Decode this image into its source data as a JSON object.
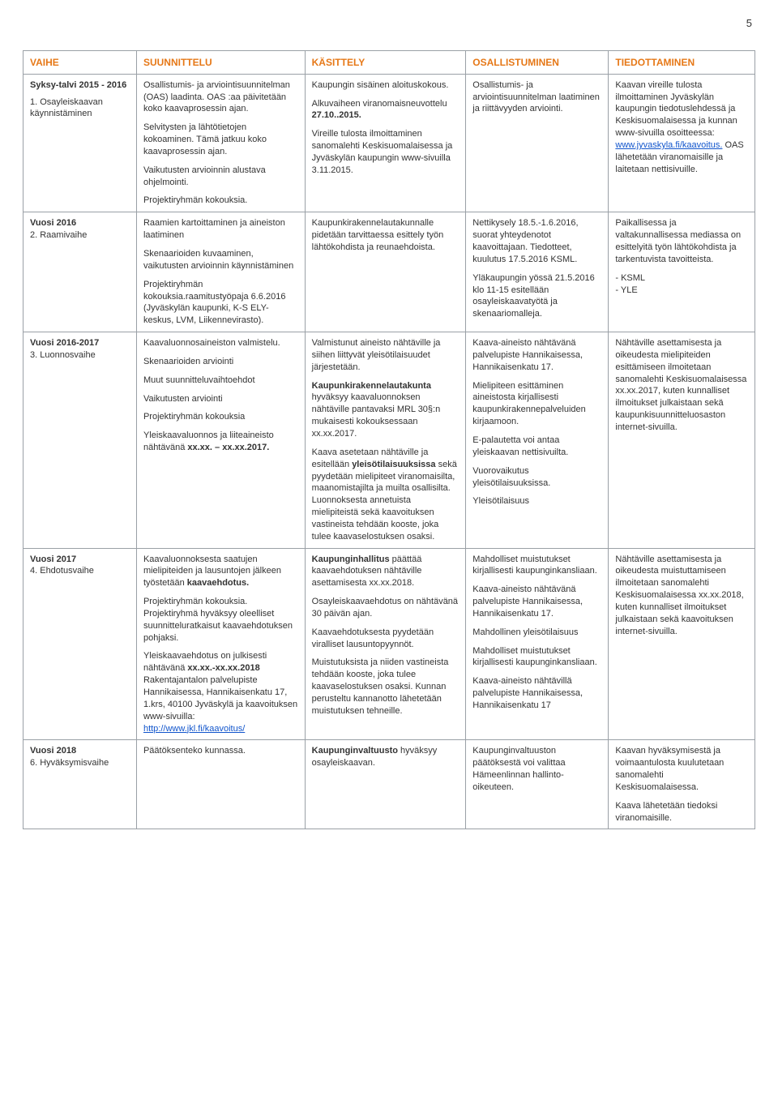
{
  "page_number": "5",
  "headers": {
    "col0": "VAIHE",
    "col1": "SUUNNITTELU",
    "col2": "KÄSITTELY",
    "col3": "OSALLISTUMINEN",
    "col4": "TIEDOTTAMINEN"
  },
  "rows": {
    "r1": {
      "phase_title": "Syksy-talvi 2015 - 2016",
      "phase_sub": "1. Osayleiskaavan käynnistäminen",
      "c1p1": "Osallistumis- ja arviointisuunnitelman (OAS) laadinta. OAS :aa päivitetään koko kaavaprosessin ajan.",
      "c1p2": "Selvitysten ja lähtötietojen kokoaminen. Tämä jatkuu koko kaavaprosessin ajan.",
      "c1p3": "Vaikutusten arvioinnin alustava ohjelmointi.",
      "c1p4": "Projektiryhmän kokouksia.",
      "c2p1": "Kaupungin sisäinen aloituskokous.",
      "c2p2a": "Alkuvaiheen viranomaisneuvottelu ",
      "c2p2b": "27.10..2015.",
      "c2p3": "Vireille tulosta ilmoittaminen sanomalehti Keskisuomalaisessa ja Jyväskylän kaupungin www-sivuilla 3.11.2015.",
      "c3p1": "Osallistumis- ja arviointisuunnitelman laatiminen ja riittävyyden arviointi.",
      "c4p1a": "Kaavan vireille tulosta ilmoittaminen Jyväskylän kaupungin tiedotuslehdessä ja Keskisuomalaisessa ja kunnan www-sivuilla osoitteessa: ",
      "c4link": "www.jyvaskyla.fi/kaavoitus.",
      "c4p1b": " OAS lähetetään viranomaisille ja laitetaan nettisivuille."
    },
    "r2": {
      "phase_title": "Vuosi 2016",
      "phase_sub": "2. Raamivaihe",
      "c1p1": "Raamien kartoittaminen ja aineiston laatiminen",
      "c1p2": "Skenaarioiden kuvaaminen, vaikutusten arvioinnin käynnistäminen",
      "c1p3": "Projektiryhmän kokouksia.raamitustyöpaja 6.6.2016 (Jyväskylän kaupunki, K-S ELY-keskus, LVM, Liikennevirasto).",
      "c2p1": "Kaupunkirakennelautakunnalle pidetään tarvittaessa esittely työn lähtökohdista ja reunaehdoista.",
      "c3p1": "Nettikysely 18.5.-1.6.2016, suorat yhteydenotot kaavoittajaan. Tiedotteet, kuulutus 17.5.2016 KSML.",
      "c3p2": "Yläkaupungin yössä 21.5.2016 klo 11-15 esitellään osayleiskaavatyötä ja skenaariomalleja.",
      "c4p1": "Paikallisessa ja valtakunnallisessa mediassa on esittelyitä työn lähtökohdista ja tarkentuvista tavoitteista.",
      "c4p2": "- KSML",
      "c4p3": "- YLE"
    },
    "r3": {
      "phase_title": "Vuosi 2016-2017",
      "phase_sub": "3. Luonnosvaihe",
      "c1p1": "Kaavaluonnosaineiston valmistelu.",
      "c1p2": "Skenaarioiden arviointi",
      "c1p3": "Muut suunnitteluvaihtoehdot",
      "c1p4": "Vaikutusten arviointi",
      "c1p5": "Projektiryhmän kokouksia",
      "c1p6a": "Yleiskaavaluonnos ja liiteaineisto nähtävänä ",
      "c1p6b": "xx.xx. – xx.xx.2017.",
      "c2p1": "Valmistunut aineisto nähtäville ja siihen liittyvät yleisötilaisuudet järjestetään.",
      "c2p2a": "Kaupunkirakennelautakunta",
      "c2p2b": " hyväksyy kaavaluonnoksen nähtäville pantavaksi MRL 30§:n mukaisesti kokouksessaan xx.xx.2017.",
      "c2p3a": "Kaava asetetaan nähtäville ja esitellään ",
      "c2p3b": "yleisötilaisuuksissa",
      "c2p3c": " sekä pyydetään mielipiteet viranomaisilta, maanomistajilta ja muilta osallisilta. Luonnoksesta annetuista mielipiteistä sekä kaavoituksen vastineista tehdään kooste, joka tulee kaavaselostuksen osaksi.",
      "c3p1": "Kaava-aineisto nähtävänä palvelupiste Hannikaisessa, Hannikaisenkatu 17.",
      "c3p2": "Mielipiteen esittäminen aineistosta kirjallisesti kaupunkirakennepalveluiden kirjaamoon.",
      "c3p3": "E-palautetta voi antaa yleiskaavan nettisivuilta.",
      "c3p4": "Vuorovaikutus yleisötilaisuuksissa.",
      "c3p5": "Yleisötilaisuus",
      "c4p1": "Nähtäville asettamisesta ja oikeudesta mielipiteiden esittämiseen ilmoitetaan sanomalehti Keskisuomalaisessa xx.xx.2017, kuten kunnalliset ilmoitukset julkaistaan sekä kaupunkisuunnitteluosaston internet-sivuilla."
    },
    "r4": {
      "phase_title": "Vuosi 2017",
      "phase_sub": "4. Ehdotusvaihe",
      "c1p1a": "Kaavaluonnoksesta saatujen mielipiteiden ja lausuntojen jälkeen työstetään ",
      "c1p1b": "kaavaehdotus.",
      "c1p2": "Projektiryhmän kokouksia. Projektiryhmä hyväksyy oleelliset suunnitteluratkaisut kaavaehdotuksen pohjaksi.",
      "c1p3a": "Yleiskaavaehdotus on julkisesti nähtävänä ",
      "c1p3b": "xx.xx.-xx.xx.2018",
      "c1p3c": " Rakentajantalon palvelupiste Hannikaisessa, Hannikaisenkatu 17, 1.krs, 40100 Jyväskylä ja kaavoituksen www-sivuilla: ",
      "c1link": "http://www.jkl.fi/kaavoitus/",
      "c2p1a": "Kaupunginhallitus",
      "c2p1b": " päättää kaavaehdotuksen nähtäville asettamisesta xx.xx.2018.",
      "c2p2": "Osayleiskaavaehdotus on nähtävänä 30 päivän ajan.",
      "c2p3": "Kaavaehdotuksesta pyydetään viralliset lausuntopyynnöt.",
      "c2p4": "Muistutuksista ja niiden vastineista tehdään kooste, joka tulee kaavaselostuksen osaksi. Kunnan perusteltu kannanotto lähetetään muistutuksen tehneille.",
      "c3p1": "Mahdolliset muistutukset kirjallisesti kaupunginkansliaan.",
      "c3p2": "Kaava-aineisto nähtävänä palvelupiste Hannikaisessa, Hannikaisenkatu 17.",
      "c3p3": "Mahdollinen yleisötilaisuus",
      "c3p4": "Mahdolliset muistutukset kirjallisesti kaupunginkansliaan.",
      "c3p5": "Kaava-aineisto nähtävillä palvelupiste Hannikaisessa, Hannikaisenkatu 17",
      "c4p1": "Nähtäville asettamisesta ja oikeudesta muistuttamiseen ilmoitetaan sanomalehti Keskisuomalaisessa xx.xx.2018, kuten kunnalliset ilmoitukset julkaistaan sekä kaavoituksen internet-sivuilla."
    },
    "r5": {
      "phase_title": "Vuosi 2018",
      "phase_sub": "6. Hyväksymisvaihe",
      "c1p1": "Päätöksenteko kunnassa.",
      "c2p1a": "Kaupunginvaltuusto",
      "c2p1b": " hyväksyy osayleiskaavan.",
      "c3p1": "Kaupunginvaltuuston päätöksestä voi valittaa Hämeenlinnan hallinto-oikeuteen.",
      "c4p1": "Kaavan hyväksymisestä ja voimaantulosta kuulutetaan sanomalehti Keskisuomalaisessa.",
      "c4p2": "Kaava lähetetään tiedoksi viranomaisille."
    }
  }
}
